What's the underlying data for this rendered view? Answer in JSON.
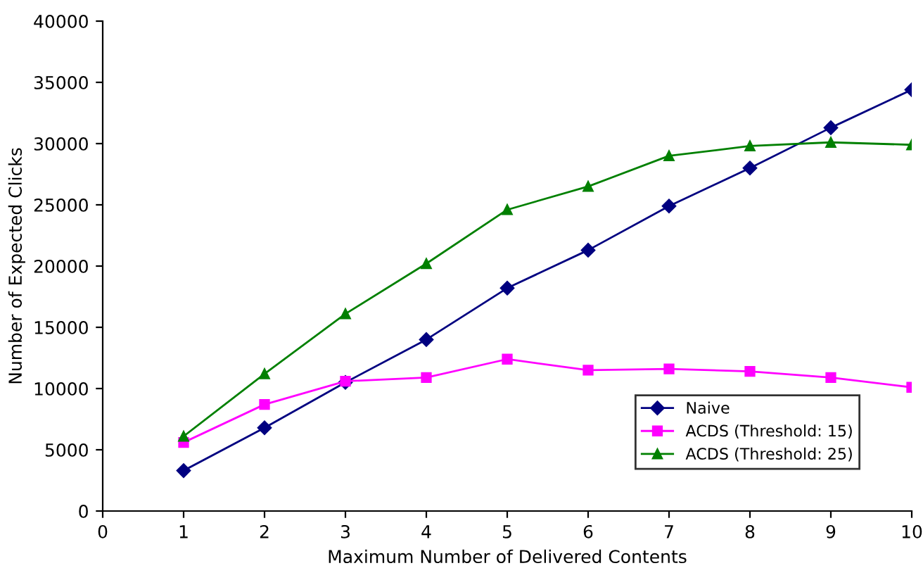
{
  "chart_data": {
    "type": "line",
    "xlabel": "Maximum Number of Delivered Contents",
    "ylabel": "Number of Expected Clicks",
    "x": [
      1,
      2,
      3,
      4,
      5,
      6,
      7,
      8,
      9,
      10
    ],
    "series": [
      {
        "name": "Naive",
        "color": "#000080",
        "marker": "diamond",
        "values": [
          3300,
          6800,
          10500,
          14000,
          18200,
          21300,
          24900,
          28000,
          31300,
          34400
        ]
      },
      {
        "name": "ACDS (Threshold: 15)",
        "color": "#ff00ff",
        "marker": "square",
        "values": [
          5600,
          8700,
          10600,
          10900,
          12400,
          11500,
          11600,
          11400,
          10900,
          10100
        ]
      },
      {
        "name": "ACDS (Threshold: 25)",
        "color": "#008000",
        "marker": "triangle",
        "values": [
          6100,
          11200,
          16100,
          20200,
          24600,
          26500,
          29000,
          29800,
          30100,
          29900
        ]
      }
    ],
    "xlim": [
      0,
      10
    ],
    "xticks": [
      0,
      1,
      2,
      3,
      4,
      5,
      6,
      7,
      8,
      9,
      10
    ],
    "ylim": [
      0,
      40000
    ],
    "yticks": [
      0,
      5000,
      10000,
      15000,
      20000,
      25000,
      30000,
      35000,
      40000
    ],
    "grid": false,
    "legend": "bottom right"
  }
}
